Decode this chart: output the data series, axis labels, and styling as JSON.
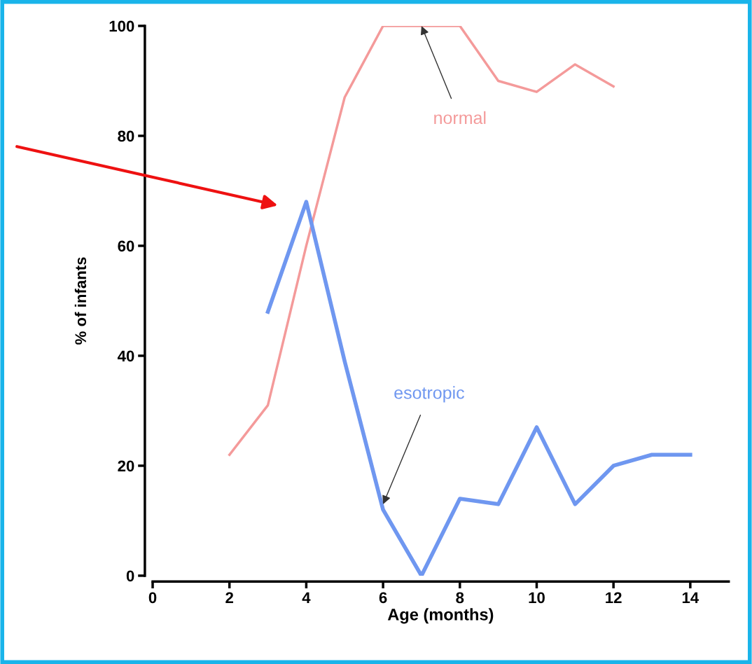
{
  "chart_data": {
    "type": "line",
    "xlabel": "Age (months)",
    "ylabel": "% of infants",
    "xlim": [
      0,
      15
    ],
    "xticks": [
      0,
      2,
      4,
      6,
      8,
      10,
      12,
      14
    ],
    "ylim": [
      0,
      100
    ],
    "yticks": [
      0,
      20,
      40,
      60,
      80,
      100
    ],
    "grid": false,
    "marker": "none",
    "line_style": "solid",
    "series": [
      {
        "color": "#f49a9a",
        "x": [
          2,
          3,
          4,
          5,
          6,
          7,
          8,
          9,
          10,
          11,
          12
        ],
        "values": [
          22,
          31,
          60,
          87,
          100,
          100,
          100,
          90,
          88,
          93,
          89
        ]
      },
      {
        "color": "#6f97f0",
        "x": [
          3,
          4,
          5,
          6,
          7,
          8,
          9,
          10,
          11,
          12,
          13,
          14
        ],
        "values": [
          48,
          68,
          39,
          12,
          0,
          14,
          13,
          27,
          13,
          20,
          22,
          22
        ]
      }
    ],
    "annotations": [
      {
        "text": "normal",
        "x": 7,
        "y": 100
      },
      {
        "text": "esotropic",
        "x": 6,
        "y": 13
      }
    ]
  }
}
